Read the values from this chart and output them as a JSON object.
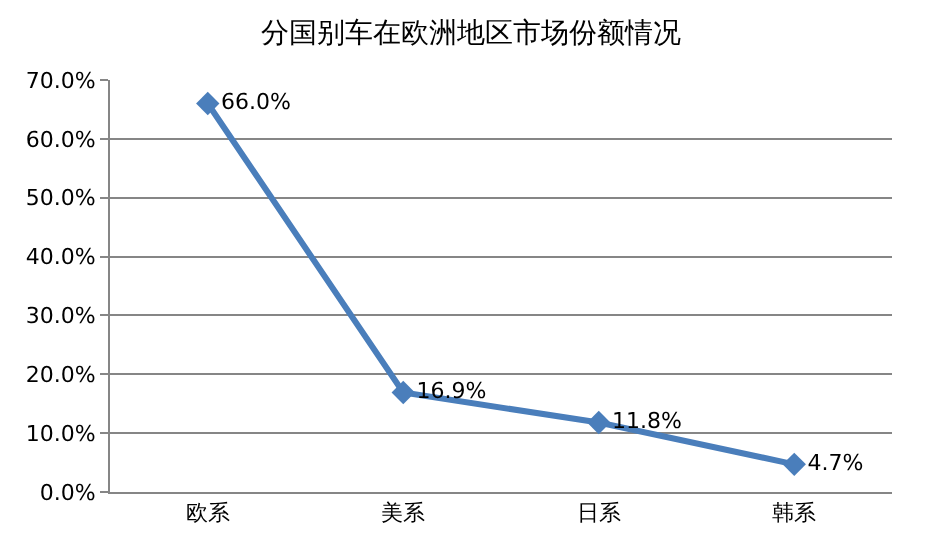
{
  "chart_data": {
    "type": "line",
    "title": "分国别车在欧洲地区市场份额情况",
    "categories": [
      "欧系",
      "美系",
      "日系",
      "韩系"
    ],
    "series": [
      {
        "color": "#4a7ebb",
        "values": [
          66.0,
          16.9,
          11.8,
          4.7
        ],
        "value_labels": [
          "66.0%",
          "16.9%",
          "11.8%",
          "4.7%"
        ]
      }
    ],
    "ylim": [
      0,
      70
    ],
    "yticks": [
      {
        "value": 0,
        "label": "0.0%"
      },
      {
        "value": 10,
        "label": "10.0%"
      },
      {
        "value": 20,
        "label": "20.0%"
      },
      {
        "value": 30,
        "label": "30.0%"
      },
      {
        "value": 40,
        "label": "40.0%"
      },
      {
        "value": 50,
        "label": "50.0%"
      },
      {
        "value": 60,
        "label": "60.0%"
      },
      {
        "value": 70,
        "label": "70.0%"
      }
    ],
    "grid": "y",
    "legend": false,
    "marker": "diamond",
    "line_style": "solid"
  }
}
